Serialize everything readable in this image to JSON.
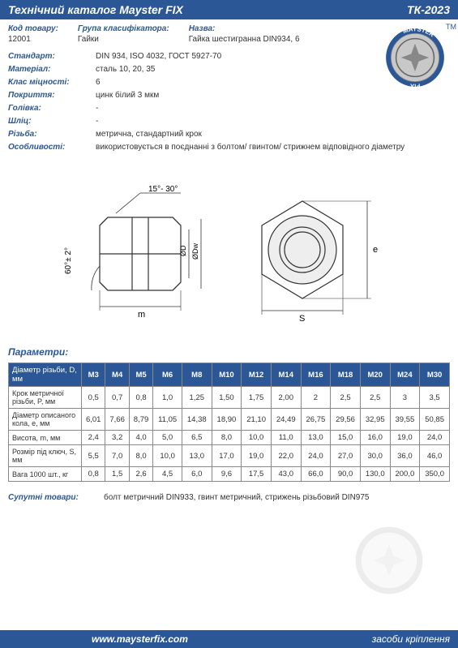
{
  "header": {
    "title": "Технічний каталог Mayster FIX",
    "catalog_code": "ТК-2023"
  },
  "meta": {
    "code_label": "Код товару:",
    "code_value": "12001",
    "group_label": "Група класифікатора:",
    "group_value": "Гайки",
    "name_label": "Назва:",
    "name_value": "Гайка шестигранна DIN934, 6"
  },
  "specs": [
    {
      "k": "Стандарт:",
      "v": "DIN 934, ISO 4032, ГОСТ 5927-70"
    },
    {
      "k": "Матеріал:",
      "v": "сталь 10, 20, 35"
    },
    {
      "k": "Клас міцності:",
      "v": "6"
    },
    {
      "k": "Покриття:",
      "v": "цинк білий 3 мкм"
    },
    {
      "k": "Голівка:",
      "v": "-"
    },
    {
      "k": "Шліц:",
      "v": "-"
    },
    {
      "k": "Різьба:",
      "v": "метрична, стандартний крок"
    },
    {
      "k": "Особливості:",
      "v": "використовується в поєднанні з болтом/ гвинтом/ стрижнем відповідного діаметру"
    }
  ],
  "parameters_label": "Параметри:",
  "table": {
    "header_label": "Діаметр різьби, D, мм",
    "sizes": [
      "M3",
      "M4",
      "M5",
      "M6",
      "M8",
      "M10",
      "M12",
      "M14",
      "M16",
      "M18",
      "M20",
      "M24",
      "M30"
    ],
    "rows": [
      {
        "label": "Крок метричної різьби, P, мм",
        "vals": [
          "0,5",
          "0,7",
          "0,8",
          "1,0",
          "1,25",
          "1,50",
          "1,75",
          "2,00",
          "2",
          "2,5",
          "2,5",
          "3",
          "3,5"
        ]
      },
      {
        "label": "Діаметр описаного кола, e, мм",
        "vals": [
          "6,01",
          "7,66",
          "8,79",
          "11,05",
          "14,38",
          "18,90",
          "21,10",
          "24,49",
          "26,75",
          "29,56",
          "32,95",
          "39,55",
          "50,85"
        ]
      },
      {
        "label": "Висота, m, мм",
        "vals": [
          "2,4",
          "3,2",
          "4,0",
          "5,0",
          "6,5",
          "8,0",
          "10,0",
          "11,0",
          "13,0",
          "15,0",
          "16,0",
          "19,0",
          "24,0"
        ]
      },
      {
        "label": "Розмір під ключ, S, мм",
        "vals": [
          "5,5",
          "7,0",
          "8,0",
          "10,0",
          "13,0",
          "17,0",
          "19,0",
          "22,0",
          "24,0",
          "27,0",
          "30,0",
          "36,0",
          "46,0"
        ]
      },
      {
        "label": "Вага 1000 шт., кг",
        "vals": [
          "0,8",
          "1,5",
          "2,6",
          "4,5",
          "6,0",
          "9,6",
          "17,5",
          "43,0",
          "66,0",
          "90,0",
          "130,0",
          "200,0",
          "350,0"
        ]
      }
    ]
  },
  "related": {
    "label": "Супутні товари:",
    "value": "болт метричний DIN933, гвинт метричний, стрижень різьбовий DIN975"
  },
  "footer": {
    "url": "www.maysterfix.com",
    "tagline": "засоби кріплення"
  },
  "brand": {
    "top": "MAYSTER",
    "bottom": "FIX",
    "tm": "TM"
  },
  "diagram": {
    "chamfer": "15°- 30°",
    "angle": "60°± 2°",
    "m": "m",
    "s": "S",
    "e": "e",
    "od": "ØD",
    "odw": "ØDw"
  },
  "colors": {
    "brand": "#2b5797",
    "line": "#333333"
  }
}
